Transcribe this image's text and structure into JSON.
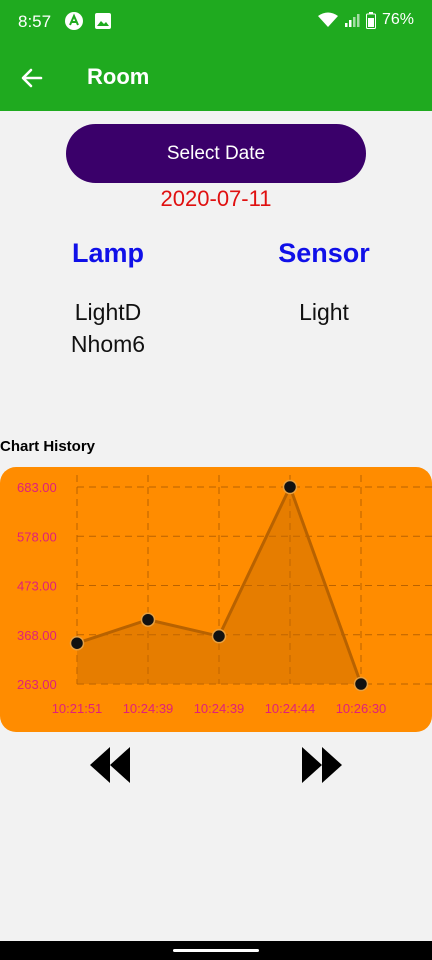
{
  "status_bar": {
    "time": "8:57",
    "battery": "76%"
  },
  "app_bar": {
    "title": "Room"
  },
  "select_date_label": "Select Date",
  "selected_date": "2020-07-11",
  "lamp": {
    "header": "Lamp",
    "value_line1": "LightD",
    "value_line2": "Nhom6"
  },
  "sensor": {
    "header": "Sensor",
    "value": "Light"
  },
  "chart_title": "Chart History",
  "colors": {
    "status_green": "#1faa1f",
    "button_purple": "#3a006a",
    "date_red": "#e01010",
    "header_blue": "#1010e8",
    "chart_orange": "#ff8c00",
    "axis_label_pink": "#e0207a"
  },
  "chart_data": {
    "type": "area",
    "categories": [
      "10:21:51",
      "10:24:39",
      "10:24:39",
      "10:24:44",
      "10:26:30"
    ],
    "series": [
      {
        "values": [
          350,
          400,
          365,
          683,
          263
        ]
      }
    ],
    "ylim": [
      263,
      683
    ],
    "yticks": [
      "263.00",
      "368.00",
      "473.00",
      "578.00",
      "683.00"
    ],
    "grid": true,
    "xlabel": "",
    "ylabel": "",
    "title": ""
  }
}
